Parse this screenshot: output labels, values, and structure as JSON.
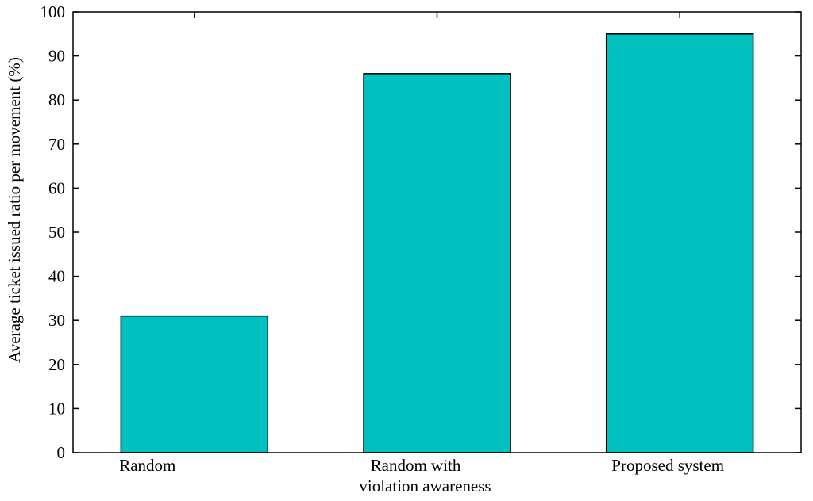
{
  "chart_data": {
    "type": "bar",
    "categories": [
      [
        "Random"
      ],
      [
        "Random with",
        "violation awareness"
      ],
      [
        "Proposed system"
      ]
    ],
    "values": [
      31,
      86,
      95
    ],
    "ylabel": "Average ticket issued ratio per movement (%)",
    "ylim": [
      0,
      100
    ],
    "yticks": [
      0,
      10,
      20,
      30,
      40,
      50,
      60,
      70,
      80,
      90,
      100
    ],
    "grid": false,
    "legend": "none",
    "bar_color": "#00C0C0",
    "edge_color": "#000000"
  }
}
